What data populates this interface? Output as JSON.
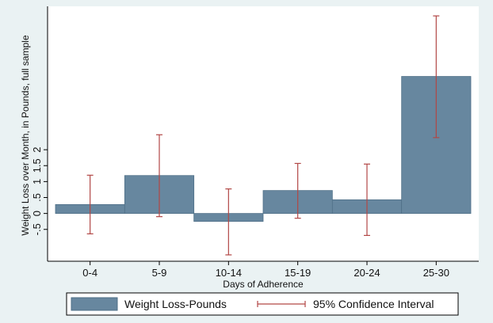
{
  "chart_data": {
    "type": "bar",
    "title": "",
    "xlabel": "Days of Adherence",
    "ylabel": "Weight Loss over Month, in Pounds, full sample",
    "categories": [
      "0-4",
      "5-9",
      "10-14",
      "15-19",
      "20-24",
      "25-30"
    ],
    "series": [
      {
        "name": "Weight Loss-Pounds",
        "values": [
          0.28,
          1.19,
          -0.25,
          0.72,
          0.43,
          4.3
        ]
      }
    ],
    "error_bars": {
      "name": "95% Confidence Interval",
      "lower": [
        -0.64,
        -0.1,
        -1.3,
        -0.15,
        -0.69,
        2.38
      ],
      "upper": [
        1.2,
        2.47,
        0.77,
        1.57,
        1.55,
        6.2
      ]
    },
    "yticks": [
      -0.5,
      0,
      0.5,
      1,
      1.5,
      2
    ],
    "ytick_labels": [
      "-.5",
      "0",
      ".5",
      "1",
      "1.5",
      "2"
    ],
    "ylim": [
      -1.5,
      6.5
    ],
    "grid": false,
    "legend_position": "bottom",
    "colors": {
      "bar": "#67879f",
      "bar_edge": "#4f6f87",
      "ci": "#b24745",
      "outer_background": "#eaf2f3",
      "plot_background": "#ffffff"
    }
  }
}
